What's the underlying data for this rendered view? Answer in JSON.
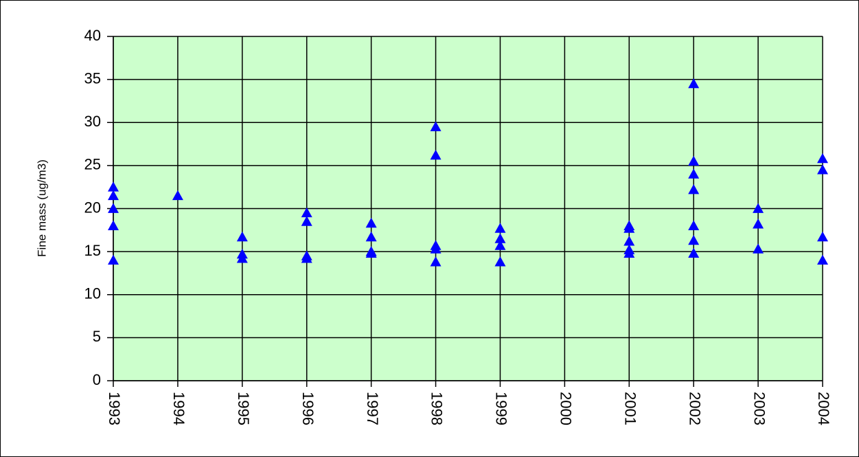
{
  "chart_data": {
    "type": "scatter",
    "y_label": "Fine mass (ug/m3)",
    "x": [
      1993,
      1993,
      1993,
      1993,
      1993,
      1994,
      1995,
      1995,
      1995,
      1996,
      1996,
      1996,
      1996,
      1997,
      1997,
      1997,
      1997,
      1998,
      1998,
      1998,
      1998,
      1998,
      1999,
      1999,
      1999,
      1999,
      2001,
      2001,
      2001,
      2001,
      2001,
      2002,
      2002,
      2002,
      2002,
      2002,
      2002,
      2002,
      2003,
      2003,
      2003,
      2004,
      2004,
      2004,
      2004
    ],
    "values": [
      22.5,
      21.5,
      20,
      18,
      14,
      21.5,
      16.7,
      14.7,
      14.2,
      19.5,
      18.5,
      14.5,
      14.2,
      18.3,
      16.7,
      15,
      14.8,
      29.5,
      26.2,
      15.7,
      15.3,
      13.8,
      17.7,
      16.5,
      15.7,
      13.8,
      18,
      17.7,
      16.2,
      15.2,
      14.8,
      34.5,
      25.5,
      24,
      22.2,
      18,
      16.3,
      14.8,
      20,
      18.2,
      15.3,
      25.8,
      24.5,
      16.7,
      14
    ],
    "color": "#0000ff",
    "marker": "triangle",
    "background": "#ccffcc",
    "grid": true,
    "xlim": [
      1993,
      2004
    ],
    "xticks": [
      1993,
      1994,
      1995,
      1996,
      1997,
      1998,
      1999,
      2000,
      2001,
      2002,
      2003,
      2004
    ],
    "ylim": [
      0,
      40
    ],
    "yticks": [
      0,
      5,
      10,
      15,
      20,
      25,
      30,
      35,
      40
    ]
  }
}
